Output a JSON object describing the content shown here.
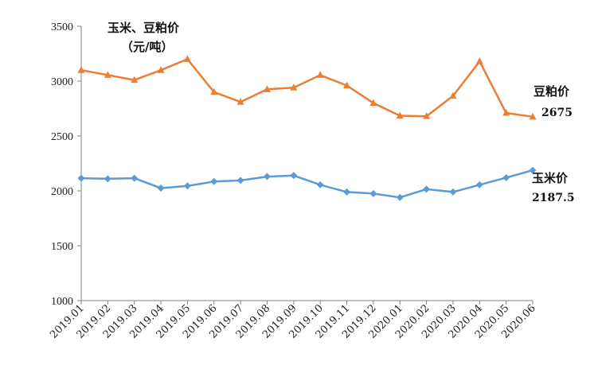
{
  "chart_data": {
    "type": "line",
    "title": "玉米、豆粕价",
    "subtitle": "（元/吨）",
    "xlabel": "",
    "ylabel": "",
    "ylim": [
      1000,
      3500
    ],
    "yticks": [
      1000,
      1500,
      2000,
      2500,
      3000,
      3500
    ],
    "grid": false,
    "legend": "none",
    "categories": [
      "2019.01",
      "2019.02",
      "2019.03",
      "2019.04",
      "2019.05",
      "2019.06",
      "2019.07",
      "2019.08",
      "2019.09",
      "2019.10",
      "2019.11",
      "2019.12",
      "2020.01",
      "2020.02",
      "2020.03",
      "2020.04",
      "2020.05",
      "2020.06"
    ],
    "series": [
      {
        "name": "豆粕价",
        "color": "#ED7D31",
        "marker": "triangle",
        "end_label": "2675",
        "values": [
          3100,
          3055,
          3010,
          3100,
          3200,
          2900,
          2810,
          2925,
          2940,
          3055,
          2960,
          2800,
          2685,
          2680,
          2865,
          3180,
          2710,
          2675
        ]
      },
      {
        "name": "玉米价",
        "color": "#5B9BD5",
        "marker": "diamond",
        "end_label": "2187.5",
        "values": [
          2115,
          2110,
          2115,
          2025,
          2045,
          2085,
          2095,
          2130,
          2140,
          2055,
          1990,
          1975,
          1940,
          2015,
          1990,
          2055,
          2120,
          2187.5
        ]
      }
    ]
  }
}
